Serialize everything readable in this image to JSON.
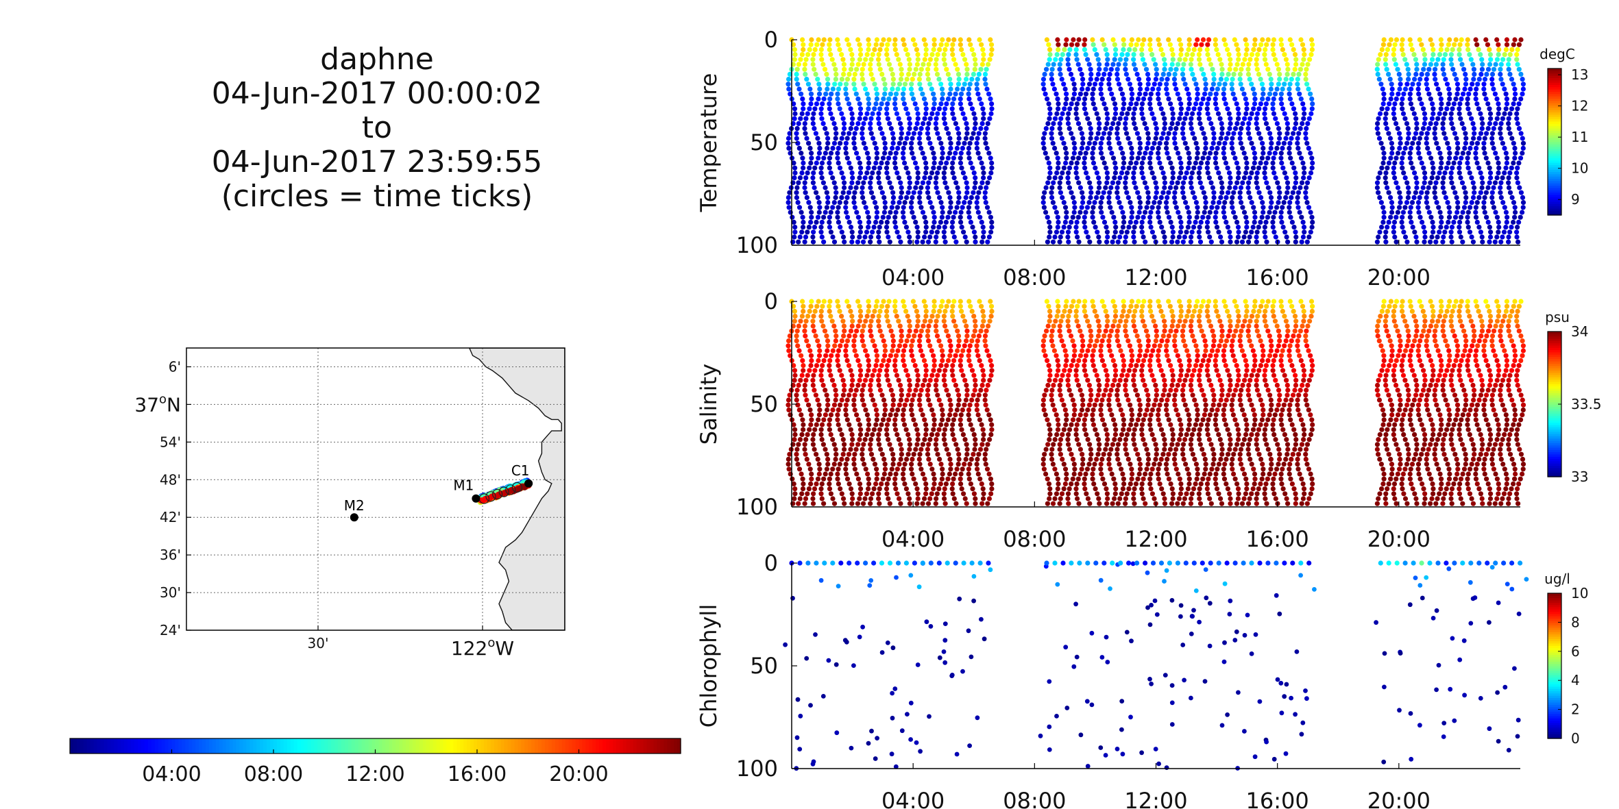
{
  "title_lines": [
    "daphne",
    "04-Jun-2017 00:00:02",
    "to",
    "04-Jun-2017 23:59:55",
    "(circles = time ticks)"
  ],
  "map": {
    "lat_ticks": [
      "6'",
      "37°N",
      "54'",
      "48'",
      "42'",
      "36'",
      "30'",
      "24'"
    ],
    "lat_values": [
      37.1,
      37.0,
      36.9,
      36.8,
      36.7,
      36.6,
      36.5,
      36.4
    ],
    "lon_ticks": [
      "30'",
      "122°W"
    ],
    "lon_values": [
      -122.5,
      -122.0
    ],
    "xlim": [
      -122.9,
      -121.75
    ],
    "ylim": [
      36.4,
      37.15
    ],
    "grid": true,
    "stations": [
      {
        "label": "M1",
        "lon": -122.02,
        "lat": 36.75
      },
      {
        "label": "M2",
        "lon": -122.39,
        "lat": 36.7
      },
      {
        "label": "C1",
        "lon": -121.86,
        "lat": 36.79
      }
    ]
  },
  "time_colorbar": {
    "ticks": [
      "04:00",
      "08:00",
      "12:00",
      "16:00",
      "20:00"
    ],
    "tick_hours": [
      4,
      8,
      12,
      16,
      20
    ],
    "range_hours": [
      0,
      24
    ],
    "colormap": "jet"
  },
  "chart_data": [
    {
      "type": "scatter",
      "ylabel": "Temperature",
      "unit": "degC",
      "clim": [
        8.5,
        13.2
      ],
      "colorbar_ticks": [
        "13",
        "12",
        "11",
        "10",
        "9"
      ],
      "colorbar_tick_values": [
        13,
        12,
        11,
        10,
        9
      ],
      "ylim": [
        100,
        0
      ],
      "yticks": [
        "0",
        "50",
        "100"
      ],
      "ytick_values": [
        0,
        50,
        100
      ],
      "xlim_hours": [
        0,
        24
      ],
      "xticks": [
        "04:00",
        "08:00",
        "12:00",
        "16:00",
        "20:00"
      ],
      "xtick_hours": [
        4,
        8,
        12,
        16,
        20
      ],
      "surface_value": 12.0,
      "deep_value": 8.8,
      "variable": "temp"
    },
    {
      "type": "scatter",
      "ylabel": "Salinity",
      "unit": "psu",
      "clim": [
        33.0,
        34.0
      ],
      "colorbar_ticks": [
        "34",
        "33.5",
        "33"
      ],
      "colorbar_tick_values": [
        34,
        33.5,
        33
      ],
      "ylim": [
        100,
        0
      ],
      "yticks": [
        "0",
        "50",
        "100"
      ],
      "ytick_values": [
        0,
        50,
        100
      ],
      "xlim_hours": [
        0,
        24
      ],
      "xticks": [
        "04:00",
        "08:00",
        "12:00",
        "16:00",
        "20:00"
      ],
      "xtick_hours": [
        4,
        8,
        12,
        16,
        20
      ],
      "surface_value": 33.7,
      "deep_value": 34.0,
      "variable": "sal"
    },
    {
      "type": "scatter",
      "ylabel": "Chlorophyll",
      "unit": "ug/l",
      "clim": [
        0,
        10
      ],
      "colorbar_ticks": [
        "10",
        "8",
        "6",
        "4",
        "2",
        "0"
      ],
      "colorbar_tick_values": [
        10,
        8,
        6,
        4,
        2,
        0
      ],
      "ylim": [
        100,
        0
      ],
      "yticks": [
        "0",
        "50",
        "100"
      ],
      "ytick_values": [
        0,
        50,
        100
      ],
      "xlim_hours": [
        0,
        24
      ],
      "xticks": [
        "04:00",
        "08:00",
        "12:00",
        "16:00",
        "20:00"
      ],
      "xtick_hours": [
        4,
        8,
        12,
        16,
        20
      ],
      "surface_value": 3.0,
      "deep_value": 0.3,
      "variable": "chl"
    }
  ],
  "profile_segments_hours": [
    [
      0.0,
      6.6
    ],
    [
      8.4,
      17.2
    ],
    [
      19.4,
      24.0
    ]
  ],
  "profile_spacing_hours": 0.27
}
